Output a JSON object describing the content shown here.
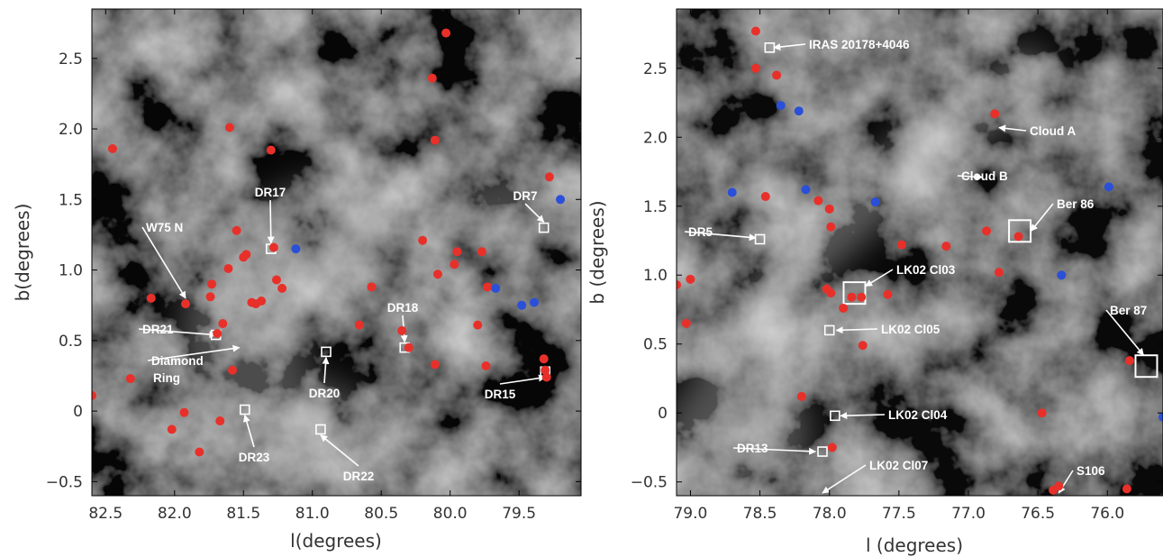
{
  "colors": {
    "red_marker": "#e8302a",
    "blue_marker": "#2a4fd8",
    "annotation": "#ffffff",
    "background_dark": "#2b2b2b"
  },
  "chart_data": [
    {
      "type": "scatter",
      "background": "grayscale infrared sky image",
      "xlabel": "l(degrees)",
      "ylabel": "b(degrees)",
      "xlim": [
        82.6,
        79.05
      ],
      "ylim": [
        -0.6,
        2.85
      ],
      "x_ticks": [
        82.5,
        82.0,
        81.5,
        81.0,
        80.5,
        80.0,
        79.5
      ],
      "x_tick_labels": [
        "82.5",
        "82.0",
        "81.5",
        "81.0",
        "80.5",
        "80.0",
        "79.5"
      ],
      "y_ticks": [
        -0.5,
        0,
        0.5,
        1.0,
        1.5,
        2.0,
        2.5
      ],
      "y_tick_labels": [
        "−0.5",
        "0",
        "0.5",
        "1.0",
        "1.5",
        "2.0",
        "2.5"
      ],
      "series": [
        {
          "color": "red",
          "points": [
            [
              82.45,
              1.86
            ],
            [
              82.6,
              0.11
            ],
            [
              82.32,
              0.23
            ],
            [
              82.17,
              0.8
            ],
            [
              82.02,
              -0.13
            ],
            [
              81.93,
              -0.01
            ],
            [
              81.92,
              0.76
            ],
            [
              81.82,
              -0.29
            ],
            [
              81.74,
              0.81
            ],
            [
              81.73,
              0.9
            ],
            [
              81.69,
              0.55
            ],
            [
              81.67,
              -0.07
            ],
            [
              81.65,
              0.62
            ],
            [
              81.61,
              1.01
            ],
            [
              81.58,
              0.29
            ],
            [
              81.6,
              2.01
            ],
            [
              81.55,
              1.28
            ],
            [
              81.5,
              1.09
            ],
            [
              81.48,
              1.11
            ],
            [
              81.44,
              0.77
            ],
            [
              81.41,
              0.76
            ],
            [
              81.37,
              0.78
            ],
            [
              81.3,
              1.85
            ],
            [
              81.28,
              1.16
            ],
            [
              81.26,
              0.93
            ],
            [
              81.22,
              0.87
            ],
            [
              80.66,
              0.61
            ],
            [
              80.57,
              0.88
            ],
            [
              80.35,
              0.57
            ],
            [
              80.3,
              0.45
            ],
            [
              80.2,
              1.21
            ],
            [
              80.13,
              2.36
            ],
            [
              80.11,
              1.92
            ],
            [
              80.11,
              0.33
            ],
            [
              80.09,
              0.97
            ],
            [
              80.03,
              2.68
            ],
            [
              79.97,
              1.04
            ],
            [
              79.95,
              1.13
            ],
            [
              79.8,
              0.61
            ],
            [
              79.77,
              1.13
            ],
            [
              79.74,
              0.32
            ],
            [
              79.73,
              0.88
            ],
            [
              79.32,
              0.37
            ],
            [
              79.31,
              0.29
            ],
            [
              79.3,
              0.24
            ],
            [
              79.28,
              1.66
            ]
          ]
        },
        {
          "color": "blue",
          "points": [
            [
              81.12,
              1.15
            ],
            [
              79.67,
              0.87
            ],
            [
              79.48,
              0.75
            ],
            [
              79.39,
              0.77
            ],
            [
              79.2,
              1.5
            ]
          ]
        }
      ],
      "regions": [
        {
          "l": 81.3,
          "b": 1.15,
          "size": "small"
        },
        {
          "l": 81.7,
          "b": 0.54,
          "size": "small"
        },
        {
          "l": 81.49,
          "b": 0.01,
          "size": "small"
        },
        {
          "l": 80.9,
          "b": 0.42,
          "size": "small"
        },
        {
          "l": 80.94,
          "b": -0.13,
          "size": "small"
        },
        {
          "l": 80.33,
          "b": 0.45,
          "size": "small"
        },
        {
          "l": 79.32,
          "b": 1.3,
          "size": "small"
        },
        {
          "l": 79.31,
          "b": 0.28,
          "size": "small"
        }
      ],
      "annotations": [
        {
          "text": "DR17",
          "anchor": [
            81.3,
            1.19
          ]
        },
        {
          "text": "W75 N",
          "anchor": [
            81.92,
            0.8
          ]
        },
        {
          "text": "DR21",
          "anchor": [
            81.7,
            0.54
          ]
        },
        {
          "text": "Diamond",
          "anchor": [
            81.53,
            0.45
          ]
        },
        {
          "text": "Ring",
          "anchor": [
            81.53,
            0.45
          ]
        },
        {
          "text": "DR23",
          "anchor": [
            81.49,
            -0.03
          ]
        },
        {
          "text": "DR20",
          "anchor": [
            80.9,
            0.38
          ]
        },
        {
          "text": "DR22",
          "anchor": [
            80.94,
            -0.17
          ]
        },
        {
          "text": "DR18",
          "anchor": [
            80.33,
            0.49
          ]
        },
        {
          "text": "DR7",
          "anchor": [
            79.32,
            1.34
          ]
        },
        {
          "text": "DR15",
          "anchor": [
            79.31,
            0.24
          ]
        }
      ]
    },
    {
      "type": "scatter",
      "background": "grayscale infrared sky image",
      "xlabel": "l (degrees)",
      "ylabel": "b (degrees)",
      "xlim": [
        79.1,
        75.6
      ],
      "ylim": [
        -0.6,
        2.93
      ],
      "x_ticks": [
        79.0,
        78.5,
        78.0,
        77.5,
        77.0,
        76.5,
        76.0
      ],
      "x_tick_labels": [
        "79.0",
        "78.5",
        "78.0",
        "77.5",
        "77.0",
        "76.5",
        "76.0"
      ],
      "y_ticks": [
        -0.5,
        0,
        0.5,
        1.0,
        1.5,
        2.0,
        2.5
      ],
      "y_tick_labels": [
        "−0.5",
        "0",
        "0.5",
        "1.0",
        "1.5",
        "2.0",
        "2.5"
      ],
      "series": [
        {
          "color": "red",
          "points": [
            [
              79.1,
              0.93
            ],
            [
              79.03,
              0.65
            ],
            [
              79.0,
              0.97
            ],
            [
              78.53,
              2.77
            ],
            [
              78.53,
              2.5
            ],
            [
              78.46,
              1.57
            ],
            [
              78.38,
              2.45
            ],
            [
              78.2,
              0.12
            ],
            [
              78.08,
              1.54
            ],
            [
              78.02,
              0.9
            ],
            [
              78.0,
              1.48
            ],
            [
              77.99,
              1.35
            ],
            [
              77.99,
              0.87
            ],
            [
              77.98,
              -0.25
            ],
            [
              77.9,
              0.76
            ],
            [
              77.84,
              0.84
            ],
            [
              77.77,
              0.84
            ],
            [
              77.76,
              0.49
            ],
            [
              77.58,
              0.86
            ],
            [
              77.48,
              1.22
            ],
            [
              77.16,
              1.21
            ],
            [
              76.87,
              1.32
            ],
            [
              76.81,
              2.17
            ],
            [
              76.78,
              1.02
            ],
            [
              76.64,
              1.28
            ],
            [
              76.47,
              0.0
            ],
            [
              76.39,
              -0.56
            ],
            [
              76.35,
              -0.53
            ],
            [
              75.86,
              -0.55
            ],
            [
              75.84,
              0.38
            ]
          ]
        },
        {
          "color": "blue",
          "points": [
            [
              78.7,
              1.6
            ],
            [
              78.35,
              2.23
            ],
            [
              78.22,
              2.19
            ],
            [
              78.17,
              1.62
            ],
            [
              77.67,
              1.53
            ],
            [
              76.33,
              1.0
            ],
            [
              75.99,
              1.64
            ],
            [
              75.6,
              -0.03
            ]
          ]
        }
      ],
      "regions": [
        {
          "l": 78.43,
          "b": 2.65,
          "size": "small"
        },
        {
          "l": 78.5,
          "b": 1.26,
          "size": "small"
        },
        {
          "l": 77.82,
          "b": 0.87,
          "size": "large"
        },
        {
          "l": 78.0,
          "b": 0.6,
          "size": "small"
        },
        {
          "l": 77.96,
          "b": -0.02,
          "size": "small"
        },
        {
          "l": 78.05,
          "b": -0.28,
          "size": "small"
        },
        {
          "l": 76.63,
          "b": 1.32,
          "size": "large"
        },
        {
          "l": 75.72,
          "b": 0.34,
          "size": "large"
        }
      ],
      "annotations": [
        {
          "text": "IRAS 20178+4046",
          "anchor": [
            78.4,
            2.65
          ]
        },
        {
          "text": "Cloud A",
          "anchor": [
            76.78,
            2.07
          ]
        },
        {
          "text": "Cloud B",
          "anchor": [
            76.9,
            1.71
          ]
        },
        {
          "text": "Ber 86",
          "anchor": [
            76.55,
            1.32
          ]
        },
        {
          "text": "DR5",
          "anchor": [
            78.53,
            1.27
          ]
        },
        {
          "text": "LK02 Cl03",
          "anchor": [
            77.74,
            0.92
          ]
        },
        {
          "text": "LK02 Cl05",
          "anchor": [
            77.95,
            0.6
          ]
        },
        {
          "text": "Ber 87",
          "anchor": [
            75.74,
            0.42
          ]
        },
        {
          "text": "LK02 Cl04",
          "anchor": [
            77.92,
            -0.02
          ]
        },
        {
          "text": "DR13",
          "anchor": [
            78.1,
            -0.28
          ]
        },
        {
          "text": "LK02 Cl07",
          "anchor": [
            78.05,
            -0.58
          ]
        },
        {
          "text": "S106",
          "anchor": [
            76.35,
            -0.58
          ]
        }
      ]
    }
  ]
}
